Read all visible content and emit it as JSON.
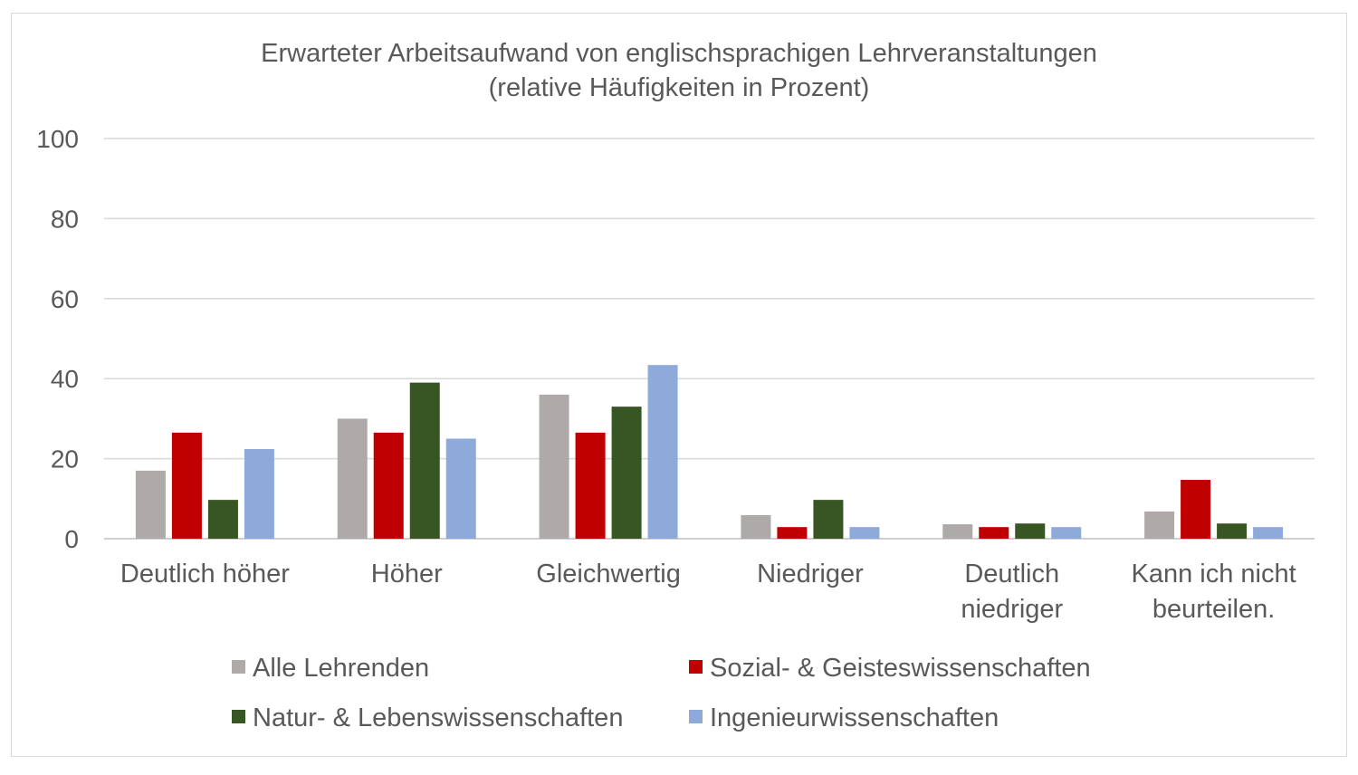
{
  "chart_data": {
    "type": "bar",
    "title": "Erwarteter Arbeitsaufwand von englischsprachigen Lehrveranstaltungen",
    "subtitle": "(relative Häufigkeiten in Prozent)",
    "xlabel": "",
    "ylabel": "",
    "ylim": [
      0,
      100
    ],
    "yticks": [
      0,
      20,
      40,
      60,
      80,
      100
    ],
    "grid": true,
    "legend_position": "bottom",
    "categories": [
      [
        "Deutlich höher"
      ],
      [
        "Höher"
      ],
      [
        "Gleichwertig"
      ],
      [
        "Niedriger"
      ],
      [
        "Deutlich",
        "niedriger"
      ],
      [
        "Kann ich nicht",
        "beurteilen."
      ]
    ],
    "series": [
      {
        "name": "Alle Lehrenden",
        "color": "#aeaaaa",
        "values": [
          17,
          30,
          36,
          5.9,
          3.6,
          6.8
        ]
      },
      {
        "name": "Sozial- & Geisteswissenschaften",
        "color": "#c00000",
        "values": [
          26.5,
          26.5,
          26.5,
          2.9,
          2.9,
          14.7
        ]
      },
      {
        "name": "Natur- & Lebenswissenschaften",
        "color": "#375623",
        "values": [
          9.7,
          39,
          33,
          9.7,
          3.8,
          3.8
        ]
      },
      {
        "name": "Ingenieurwissenschaften",
        "color": "#8eaadb",
        "values": [
          22.4,
          25,
          43.4,
          2.9,
          2.9,
          2.9
        ]
      }
    ]
  }
}
